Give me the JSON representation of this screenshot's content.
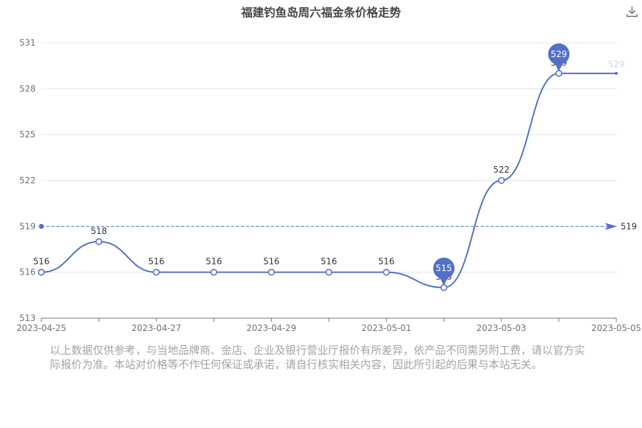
{
  "chart_data": {
    "type": "line",
    "title": "福建钓鱼岛周六福金条价格走势",
    "x": [
      "2023-04-25",
      "2023-04-26",
      "2023-04-27",
      "2023-04-28",
      "2023-04-29",
      "2023-04-30",
      "2023-05-01",
      "2023-05-02",
      "2023-05-03",
      "2023-05-04",
      "2023-05-05"
    ],
    "x_tick_labels": [
      "2023-04-25",
      "2023-04-27",
      "2023-04-29",
      "2023-05-01",
      "2023-05-03",
      "2023-05-05"
    ],
    "series": [
      {
        "values": [
          516,
          518,
          516,
          516,
          516,
          516,
          516,
          515,
          522,
          529,
          529
        ]
      }
    ],
    "ylim": [
      513,
      531
    ],
    "y_ticks": [
      513,
      516,
      519,
      522,
      525,
      528,
      531
    ],
    "average_line": {
      "value": 519,
      "label": "519"
    },
    "max_marker": {
      "value": 529,
      "label": "529"
    },
    "min_marker": {
      "value": 515,
      "label": "515"
    },
    "grid": true,
    "smooth": true,
    "colors": {
      "line": "#5470c6",
      "grid": "#e0e6f1",
      "axis": "#6e7079",
      "label": "#333333"
    }
  },
  "disclaimer": "以上数据仅供参考，与当地品牌商、金店、企业及银行营业厅报价有所差异，依产品不同需另附工费，请以官方实际报价为准。本站对价格等不作任何保证或承诺，请自行核实相关内容，因此所引起的后果与本站无关。",
  "toolbox": {
    "download_icon": "download-icon"
  }
}
